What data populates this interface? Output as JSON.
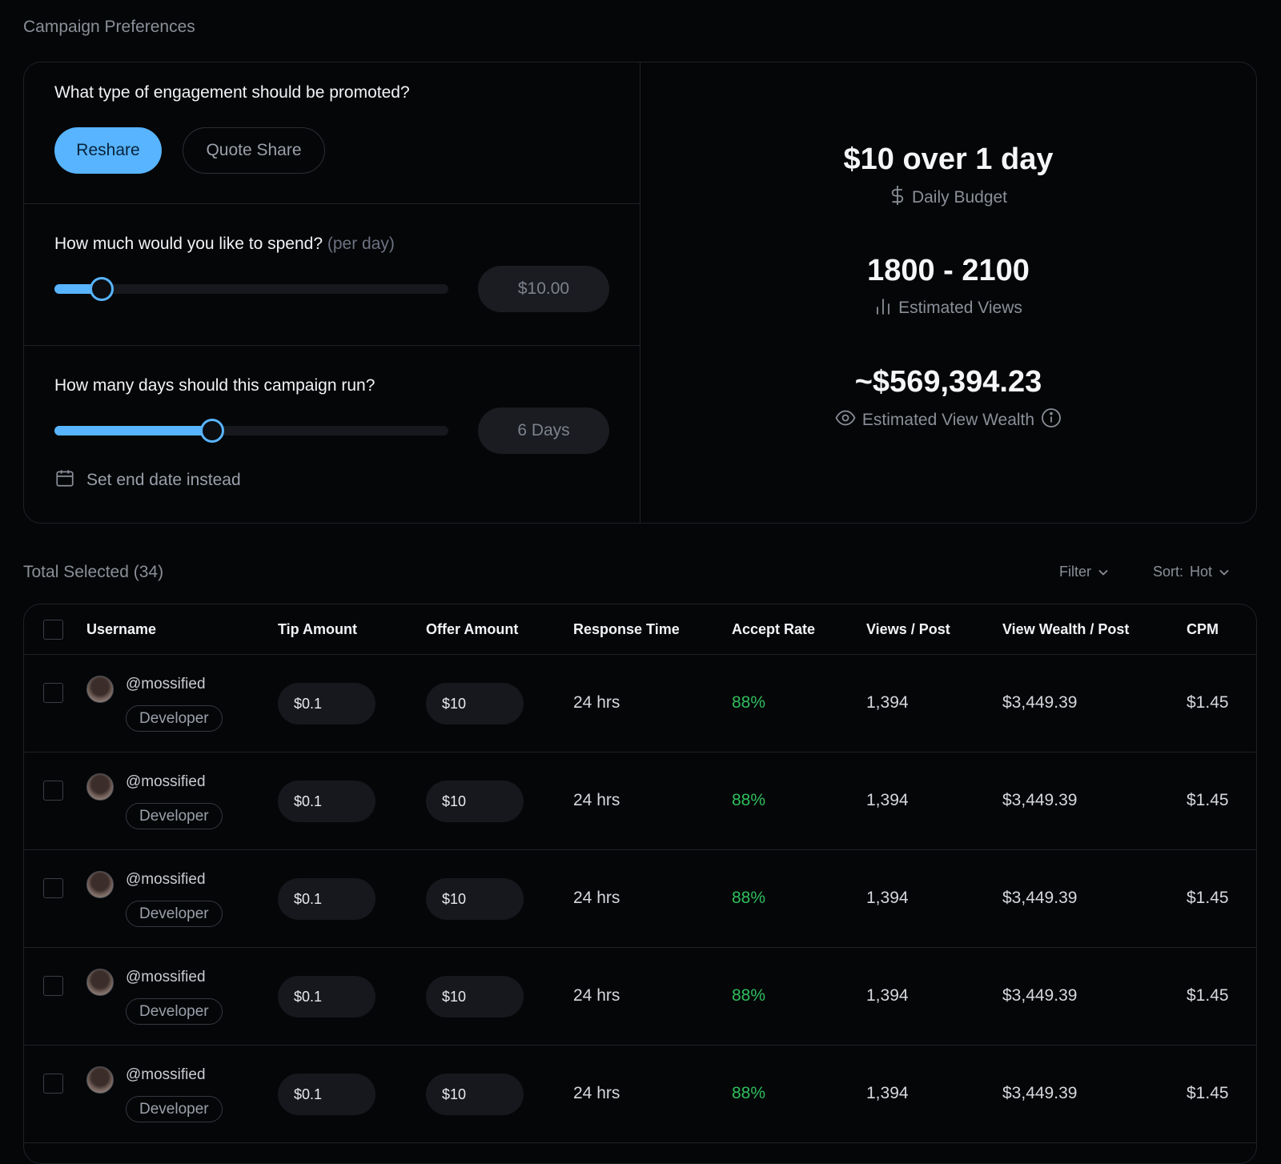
{
  "page": {
    "title": "Campaign Preferences"
  },
  "engagement": {
    "question": "What type of engagement should be promoted?",
    "options": [
      "Reshare",
      "Quote Share"
    ],
    "selected": "Reshare"
  },
  "spend": {
    "question": "How much would you like to spend?",
    "question_suffix": "(per day)",
    "value": "$10.00",
    "slider_fraction": 0.12
  },
  "duration": {
    "question": "How many days should this campaign run?",
    "value": "6 Days",
    "slider_fraction": 0.4,
    "end_date_link": "Set end date instead"
  },
  "summary": {
    "budget_value": "$10 over 1 day",
    "budget_label": "Daily Budget",
    "views_value": "1800 - 2100",
    "views_label": "Estimated Views",
    "wealth_value": "~$569,394.23",
    "wealth_label": "Estimated View Wealth"
  },
  "toolbar": {
    "total_selected": "Total Selected (34)",
    "filter_label": "Filter",
    "sort_label": "Sort:",
    "sort_value": "Hot"
  },
  "table": {
    "columns": [
      "Username",
      "Tip Amount",
      "Offer Amount",
      "Response Time",
      "Accept Rate",
      "Views / Post",
      "View Wealth / Post",
      "CPM"
    ],
    "rows": [
      {
        "username": "@mossified",
        "role": "Developer",
        "tip": "$0.1",
        "offer": "$10",
        "response": "24 hrs",
        "accept": "88%",
        "views": "1,394",
        "wealth": "$3,449.39",
        "cpm": "$1.45"
      },
      {
        "username": "@mossified",
        "role": "Developer",
        "tip": "$0.1",
        "offer": "$10",
        "response": "24 hrs",
        "accept": "88%",
        "views": "1,394",
        "wealth": "$3,449.39",
        "cpm": "$1.45"
      },
      {
        "username": "@mossified",
        "role": "Developer",
        "tip": "$0.1",
        "offer": "$10",
        "response": "24 hrs",
        "accept": "88%",
        "views": "1,394",
        "wealth": "$3,449.39",
        "cpm": "$1.45"
      },
      {
        "username": "@mossified",
        "role": "Developer",
        "tip": "$0.1",
        "offer": "$10",
        "response": "24 hrs",
        "accept": "88%",
        "views": "1,394",
        "wealth": "$3,449.39",
        "cpm": "$1.45"
      },
      {
        "username": "@mossified",
        "role": "Developer",
        "tip": "$0.1",
        "offer": "$10",
        "response": "24 hrs",
        "accept": "88%",
        "views": "1,394",
        "wealth": "$3,449.39",
        "cpm": "$1.45"
      }
    ]
  },
  "colors": {
    "accent": "#58b4ff",
    "accept_rate": "#2fbf5d",
    "background": "#050608"
  },
  "icons": {
    "budget": "dollar-icon",
    "views": "bar-chart-icon",
    "wealth": "eye-icon",
    "info": "info-icon",
    "calendar": "calendar-icon",
    "chevron": "chevron-down-icon"
  }
}
